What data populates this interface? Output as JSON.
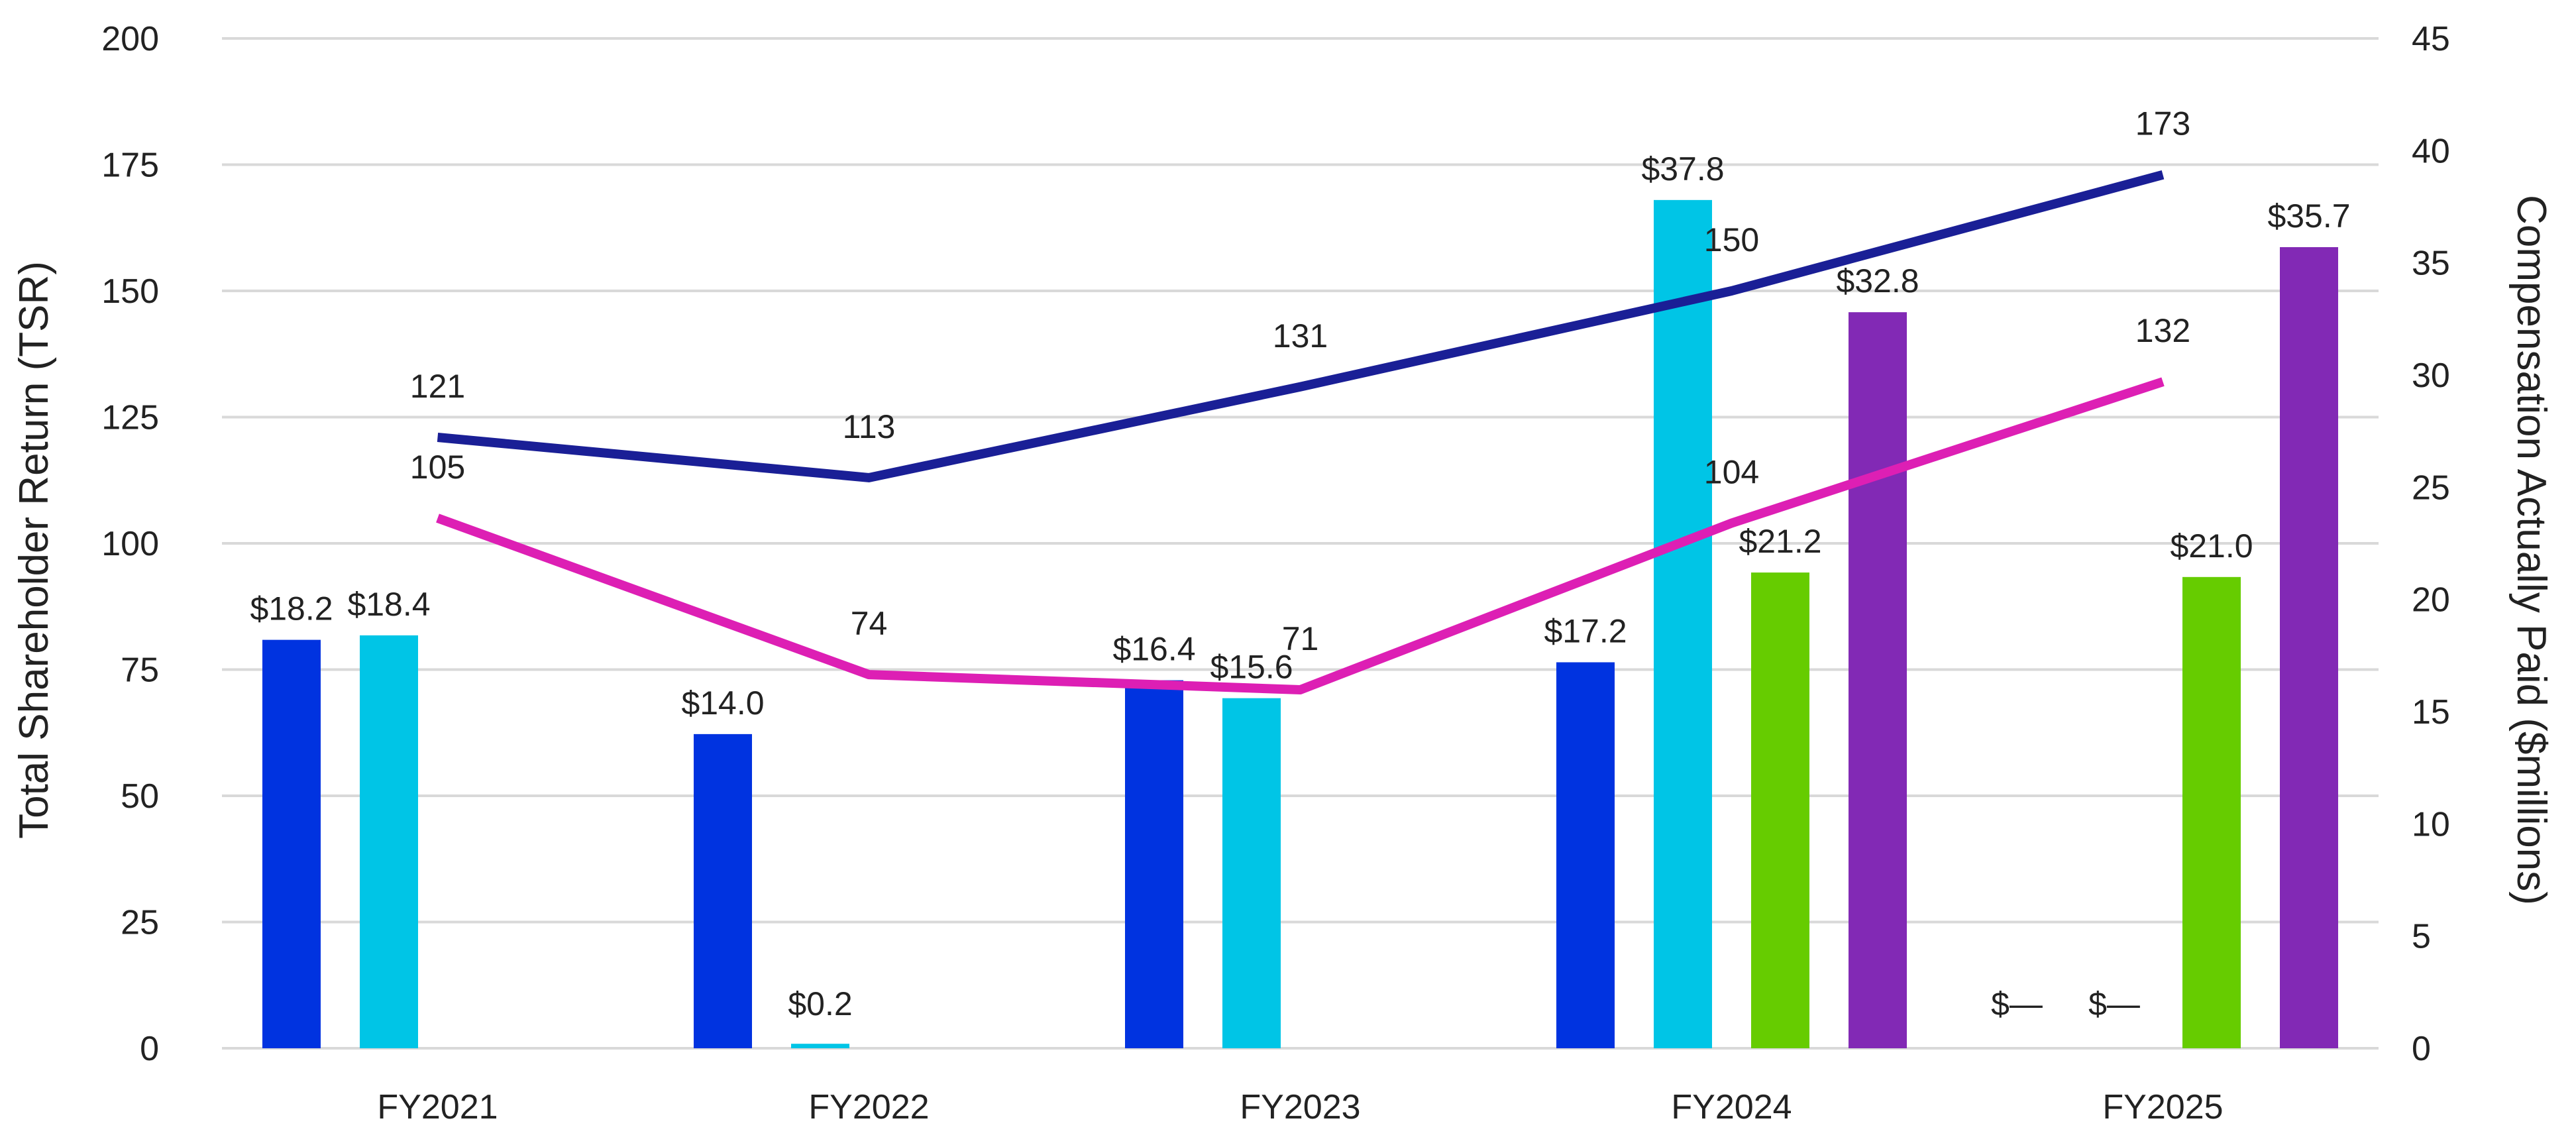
{
  "chart_data": {
    "type": "bar",
    "categories": [
      "FY2021",
      "FY2022",
      "FY2023",
      "FY2024",
      "FY2025"
    ],
    "y_left": {
      "label": "Total Shareholder Return (TSR)",
      "lim": [
        0,
        200
      ],
      "ticks": [
        "0",
        "25",
        "50",
        "75",
        "100",
        "125",
        "150",
        "175",
        "200"
      ]
    },
    "y_right": {
      "label": "Compensation Actually Paid ($millions)",
      "lim": [
        0,
        45
      ],
      "ticks": [
        "0",
        "5",
        "10",
        "15",
        "20",
        "25",
        "30",
        "35",
        "40",
        "45"
      ]
    },
    "grid": true,
    "bar_series": [
      {
        "color": "#0033e0",
        "values": [
          18.2,
          14.0,
          16.4,
          17.2,
          0
        ],
        "labels": [
          "$18.2",
          "$14.0",
          "$16.4",
          "$17.2",
          "$—"
        ]
      },
      {
        "color": "#00c5e6",
        "values": [
          18.4,
          0.2,
          15.6,
          37.8,
          0
        ],
        "labels": [
          "$18.4",
          "$0.2",
          "$15.6",
          "$37.8",
          "$—"
        ]
      },
      {
        "color": "#66cc00",
        "values": [
          null,
          null,
          null,
          21.2,
          21.0
        ],
        "labels": [
          "",
          "",
          "",
          "$21.2",
          "$21.0"
        ]
      },
      {
        "color": "#8229b5",
        "values": [
          null,
          null,
          null,
          32.8,
          35.7
        ],
        "labels": [
          "",
          "",
          "",
          "$32.8",
          "$35.7"
        ]
      }
    ],
    "line_series": [
      {
        "color": "#1a1f96",
        "values": [
          121,
          113,
          131,
          150,
          173
        ],
        "labels": [
          "121",
          "113",
          "131",
          "150",
          "173"
        ]
      },
      {
        "color": "#dd1fb4",
        "values": [
          105,
          74,
          71,
          104,
          132
        ],
        "labels": [
          "105",
          "74",
          "71",
          "104",
          "132"
        ]
      }
    ]
  }
}
